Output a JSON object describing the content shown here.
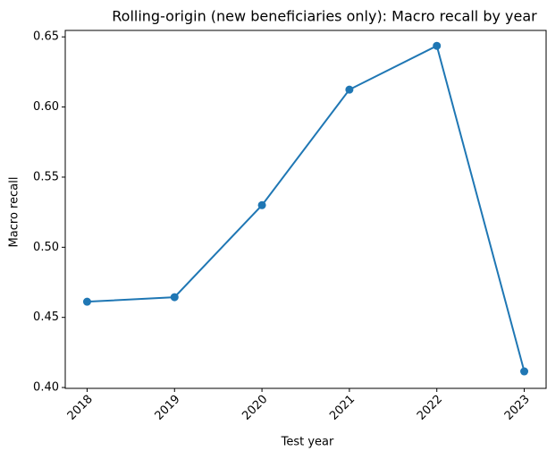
{
  "chart_data": {
    "type": "line",
    "title": "Rolling-origin (new beneficiaries only): Macro recall by year",
    "x_label": "Test year",
    "y_label": "Macro recall",
    "x": [
      2018,
      2019,
      2020,
      2021,
      2022,
      2023
    ],
    "series": [
      {
        "name": "Macro recall",
        "color": "#1f77b4",
        "values": [
          0.4612,
          0.4644,
          0.53,
          0.6124,
          0.6436,
          0.4115
        ]
      }
    ],
    "xlim": [
      2017.75,
      2023.25
    ],
    "xticks": [
      2018,
      2019,
      2020,
      2021,
      2022,
      2023
    ],
    "ylim": [
      0.3994,
      0.6546
    ],
    "yticks": [
      {
        "value": 0.4,
        "label": "0.40"
      },
      {
        "value": 0.45,
        "label": "0.45"
      },
      {
        "value": 0.5,
        "label": "0.50"
      },
      {
        "value": 0.55,
        "label": "0.55"
      },
      {
        "value": 0.6,
        "label": "0.60"
      },
      {
        "value": 0.65,
        "label": "0.65"
      }
    ]
  }
}
